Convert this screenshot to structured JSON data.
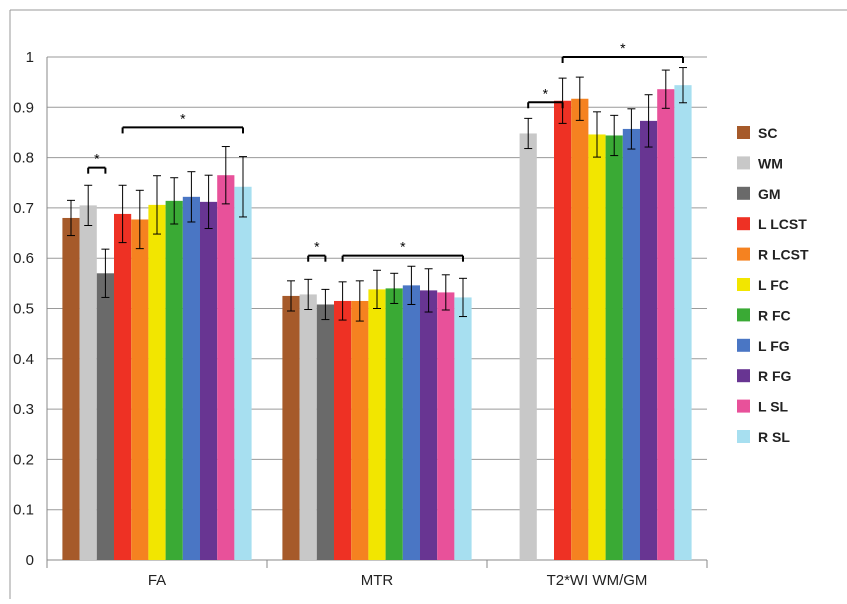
{
  "chart_data": {
    "type": "bar",
    "title": "",
    "xlabel": "",
    "ylabel": "",
    "ylim": [
      0,
      1
    ],
    "yticks": [
      "0",
      "0.1",
      "0.2",
      "0.3",
      "0.4",
      "0.5",
      "0.6",
      "0.7",
      "0.8",
      "0.9",
      "1"
    ],
    "grid": true,
    "legend_position": "right",
    "categories": [
      "FA",
      "MTR",
      "T2*WI WM/GM"
    ],
    "series": [
      {
        "name": "SC",
        "color": "#a65a2a",
        "values": [
          0.68,
          0.525,
          null
        ],
        "errors": [
          0.035,
          0.03,
          null
        ]
      },
      {
        "name": "WM",
        "color": "#c8c8c8",
        "values": [
          0.705,
          0.528,
          0.848
        ],
        "errors": [
          0.04,
          0.03,
          0.03
        ]
      },
      {
        "name": "GM",
        "color": "#6a6a6a",
        "values": [
          0.57,
          0.508,
          null
        ],
        "errors": [
          0.048,
          0.03,
          null
        ]
      },
      {
        "name": "L LCST",
        "color": "#ee3124",
        "values": [
          0.688,
          0.515,
          0.913
        ],
        "errors": [
          0.057,
          0.038,
          0.045
        ]
      },
      {
        "name": "R LCST",
        "color": "#f58220",
        "values": [
          0.677,
          0.515,
          0.917
        ],
        "errors": [
          0.058,
          0.04,
          0.043
        ]
      },
      {
        "name": "L FC",
        "color": "#f2e600",
        "values": [
          0.706,
          0.538,
          0.846
        ],
        "errors": [
          0.058,
          0.038,
          0.045
        ]
      },
      {
        "name": "R FC",
        "color": "#3aaa35",
        "values": [
          0.714,
          0.54,
          0.844
        ],
        "errors": [
          0.046,
          0.03,
          0.04
        ]
      },
      {
        "name": "L FG",
        "color": "#4a76c4",
        "values": [
          0.722,
          0.546,
          0.857
        ],
        "errors": [
          0.05,
          0.038,
          0.04
        ]
      },
      {
        "name": "R FG",
        "color": "#683592",
        "values": [
          0.712,
          0.536,
          0.873
        ],
        "errors": [
          0.053,
          0.043,
          0.052
        ]
      },
      {
        "name": "L SL",
        "color": "#e8519a",
        "values": [
          0.765,
          0.532,
          0.936
        ],
        "errors": [
          0.057,
          0.035,
          0.038
        ]
      },
      {
        "name": "R SL",
        "color": "#a7dff0",
        "values": [
          0.742,
          0.522,
          0.944
        ],
        "errors": [
          0.06,
          0.038,
          0.035
        ]
      }
    ],
    "annotations": [
      {
        "category": "FA",
        "from_series": "WM",
        "to_series": "GM",
        "level": 0.78,
        "text": "*"
      },
      {
        "category": "FA",
        "from_series": "L LCST",
        "to_series": "R SL",
        "level": 0.86,
        "text": "*"
      },
      {
        "category": "MTR",
        "from_series": "WM",
        "to_series": "GM",
        "level": 0.605,
        "text": "*"
      },
      {
        "category": "MTR",
        "from_series": "L LCST",
        "to_series": "R SL",
        "level": 0.605,
        "text": "*"
      },
      {
        "category": "T2*WI WM/GM",
        "from_series": "WM",
        "to_series": "L LCST",
        "level": 0.91,
        "text": "*"
      },
      {
        "category": "T2*WI WM/GM",
        "from_series": "L LCST",
        "to_series": "R SL",
        "level": 1.0,
        "text": "*"
      }
    ]
  }
}
